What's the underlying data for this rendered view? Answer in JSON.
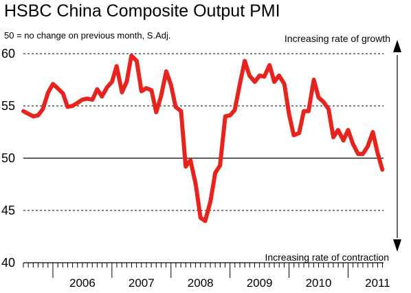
{
  "chart_data": {
    "type": "line",
    "title": "HSBC China Composite Output PMI",
    "subtitle": "50 = no change on previous month, S.Adj.",
    "annotations": {
      "top": "Increasing rate of growth",
      "bottom": "Increasing rate of contraction"
    },
    "ylim": [
      40,
      60
    ],
    "yticks": [
      40,
      45,
      50,
      55,
      60
    ],
    "xlim": [
      2005.5,
      2011.6
    ],
    "year_labels": [
      "2006",
      "2007",
      "2008",
      "2009",
      "2010",
      "2011"
    ],
    "reference_line": 50,
    "grid": "dashed horizontal at 45, 55, 60",
    "series": [
      {
        "color": "#e8231d",
        "x": [
          2005.5,
          2005.6,
          2005.67,
          2005.75,
          2005.83,
          2005.92,
          2006.0,
          2006.08,
          2006.17,
          2006.25,
          2006.33,
          2006.42,
          2006.5,
          2006.58,
          2006.67,
          2006.75,
          2006.83,
          2006.92,
          2007.0,
          2007.08,
          2007.17,
          2007.25,
          2007.33,
          2007.42,
          2007.5,
          2007.58,
          2007.67,
          2007.75,
          2007.83,
          2007.92,
          2008.0,
          2008.08,
          2008.17,
          2008.25,
          2008.33,
          2008.42,
          2008.5,
          2008.58,
          2008.67,
          2008.75,
          2008.83,
          2008.92,
          2009.0,
          2009.08,
          2009.17,
          2009.25,
          2009.33,
          2009.42,
          2009.5,
          2009.58,
          2009.67,
          2009.75,
          2009.83,
          2009.92,
          2010.0,
          2010.08,
          2010.17,
          2010.25,
          2010.33,
          2010.42,
          2010.5,
          2010.58,
          2010.67,
          2010.75,
          2010.83,
          2010.92,
          2011.0,
          2011.08,
          2011.17,
          2011.25,
          2011.33,
          2011.42,
          2011.5,
          2011.58
        ],
        "y": [
          54.5,
          54.2,
          54.0,
          54.1,
          54.7,
          56.3,
          57.1,
          56.7,
          56.2,
          54.9,
          55.0,
          55.3,
          55.6,
          55.7,
          55.6,
          56.6,
          55.9,
          56.8,
          57.3,
          58.8,
          56.3,
          57.3,
          59.8,
          59.3,
          56.4,
          56.7,
          56.5,
          54.4,
          55.9,
          58.3,
          57.0,
          54.9,
          54.5,
          49.2,
          49.8,
          47.5,
          44.3,
          44.0,
          45.9,
          48.6,
          49.3,
          54.0,
          54.1,
          54.6,
          57.2,
          59.3,
          57.9,
          57.3,
          57.9,
          57.8,
          58.9,
          57.3,
          57.9,
          57.1,
          54.2,
          52.2,
          52.4,
          54.5,
          54.5,
          57.5,
          55.8,
          55.4,
          54.7,
          52.0,
          52.7,
          51.7,
          52.7,
          51.4,
          50.4,
          50.4,
          51.1,
          52.5,
          50.5,
          48.9
        ]
      }
    ]
  }
}
